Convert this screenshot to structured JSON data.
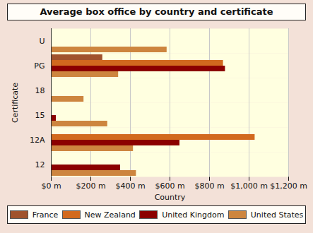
{
  "chart_data": {
    "type": "bar",
    "title": "Average box office by country and certificate",
    "x_label": "Country",
    "y_label": "Certificate",
    "orientation": "horizontal",
    "categories": [
      "U",
      "PG",
      "18",
      "15",
      "12A",
      "12"
    ],
    "series": [
      {
        "name": "France",
        "color": "#a0522d",
        "values": [
          null,
          260,
          null,
          null,
          null,
          null
        ]
      },
      {
        "name": "New Zealand",
        "color": "#d2691e",
        "values": [
          null,
          870,
          null,
          null,
          1030,
          null
        ]
      },
      {
        "name": "United Kingdom",
        "color": "#8b0000",
        "values": [
          null,
          880,
          null,
          25,
          650,
          350
        ]
      },
      {
        "name": "United States",
        "color": "#cd853f",
        "values": [
          585,
          340,
          165,
          285,
          415,
          430
        ]
      }
    ],
    "xlim": [
      0,
      1200
    ],
    "xticks": [
      {
        "value": 0,
        "label": "$0 m"
      },
      {
        "value": 200,
        "label": "$200 m"
      },
      {
        "value": 400,
        "label": "$400 m"
      },
      {
        "value": 600,
        "label": "$600 m"
      },
      {
        "value": 800,
        "label": "$800 m"
      },
      {
        "value": 1000,
        "label": "$1,000 m"
      },
      {
        "value": 1200,
        "label": "$1,200 m"
      }
    ],
    "grid": true,
    "legend": "bottom"
  }
}
